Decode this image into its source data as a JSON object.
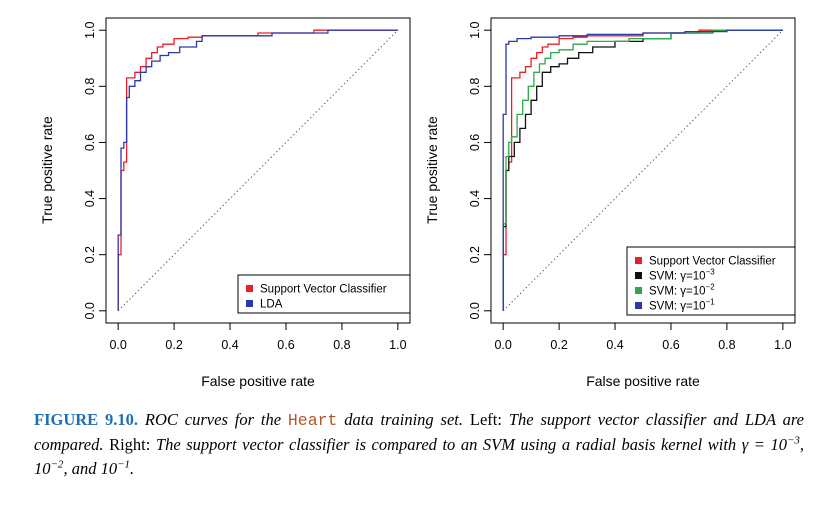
{
  "caption": {
    "label": "FIGURE 9.10.",
    "part1": "ROC curves for the",
    "code": "Heart",
    "part2": "data training set.",
    "left_word": "Left:",
    "part3": "The support vector classifier and LDA are compared.",
    "right_word": "Right:",
    "part4": "The support vector classifier is compared to an SVM using a radial basis kernel with γ = 10",
    "exp1": "−3",
    "sep1": ", 10",
    "exp2": "−2",
    "sep2": ", and 10",
    "exp3": "−1",
    "end": "."
  },
  "chart_data": [
    {
      "type": "line",
      "title": "",
      "xlabel": "False positive rate",
      "ylabel": "True positive rate",
      "xlim": [
        0,
        1
      ],
      "ylim": [
        0,
        1
      ],
      "xticks": [
        "0.0",
        "0.2",
        "0.4",
        "0.6",
        "0.8",
        "1.0"
      ],
      "yticks": [
        "0.0",
        "0.2",
        "0.4",
        "0.6",
        "0.8",
        "1.0"
      ],
      "grid": false,
      "diagonal": true,
      "legend_position": "bottom-right",
      "series": [
        {
          "name": "Support Vector Classifier",
          "color": "#e8202a",
          "x": [
            0,
            0,
            0.01,
            0.01,
            0.02,
            0.02,
            0.03,
            0.03,
            0.04,
            0.06,
            0.06,
            0.08,
            0.08,
            0.1,
            0.1,
            0.12,
            0.12,
            0.14,
            0.14,
            0.16,
            0.16,
            0.2,
            0.2,
            0.25,
            0.25,
            0.3,
            0.3,
            0.5,
            0.5,
            0.7,
            0.7,
            1
          ],
          "y": [
            0,
            0.2,
            0.2,
            0.5,
            0.5,
            0.53,
            0.53,
            0.83,
            0.83,
            0.83,
            0.85,
            0.85,
            0.87,
            0.87,
            0.9,
            0.9,
            0.92,
            0.92,
            0.94,
            0.94,
            0.95,
            0.95,
            0.97,
            0.97,
            0.975,
            0.975,
            0.98,
            0.98,
            0.99,
            0.99,
            1,
            1
          ]
        },
        {
          "name": "LDA",
          "color": "#2b3aa8",
          "x": [
            0,
            0,
            0.01,
            0.01,
            0.02,
            0.02,
            0.03,
            0.03,
            0.04,
            0.04,
            0.06,
            0.06,
            0.08,
            0.08,
            0.1,
            0.1,
            0.12,
            0.12,
            0.15,
            0.15,
            0.18,
            0.18,
            0.22,
            0.22,
            0.28,
            0.28,
            0.3,
            0.3,
            0.55,
            0.55,
            0.75,
            0.75,
            1
          ],
          "y": [
            0,
            0.27,
            0.27,
            0.58,
            0.58,
            0.6,
            0.6,
            0.76,
            0.76,
            0.8,
            0.8,
            0.82,
            0.82,
            0.85,
            0.85,
            0.87,
            0.87,
            0.89,
            0.89,
            0.91,
            0.91,
            0.92,
            0.92,
            0.94,
            0.94,
            0.96,
            0.96,
            0.98,
            0.98,
            0.99,
            0.99,
            1,
            1
          ]
        }
      ]
    },
    {
      "type": "line",
      "title": "",
      "xlabel": "False positive rate",
      "ylabel": "True positive rate",
      "xlim": [
        0,
        1
      ],
      "ylim": [
        0,
        1
      ],
      "xticks": [
        "0.0",
        "0.2",
        "0.4",
        "0.6",
        "0.8",
        "1.0"
      ],
      "yticks": [
        "0.0",
        "0.2",
        "0.4",
        "0.6",
        "0.8",
        "1.0"
      ],
      "grid": false,
      "diagonal": true,
      "legend_position": "bottom-right",
      "series": [
        {
          "name": "Support Vector Classifier",
          "color": "#e8202a",
          "x": [
            0,
            0,
            0.01,
            0.01,
            0.02,
            0.02,
            0.03,
            0.03,
            0.04,
            0.06,
            0.06,
            0.08,
            0.08,
            0.1,
            0.1,
            0.12,
            0.12,
            0.14,
            0.14,
            0.16,
            0.16,
            0.2,
            0.2,
            0.25,
            0.25,
            0.3,
            0.3,
            0.5,
            0.5,
            0.7,
            0.7,
            1
          ],
          "y": [
            0,
            0.2,
            0.2,
            0.5,
            0.5,
            0.53,
            0.53,
            0.83,
            0.83,
            0.83,
            0.85,
            0.85,
            0.87,
            0.87,
            0.9,
            0.9,
            0.92,
            0.92,
            0.94,
            0.94,
            0.95,
            0.95,
            0.97,
            0.97,
            0.975,
            0.975,
            0.98,
            0.98,
            0.99,
            0.99,
            1,
            1
          ]
        },
        {
          "name": "SVM: γ=10",
          "name_exp": "−3",
          "color": "#111111",
          "x": [
            0,
            0,
            0.01,
            0.01,
            0.02,
            0.02,
            0.04,
            0.04,
            0.06,
            0.06,
            0.08,
            0.08,
            0.1,
            0.1,
            0.12,
            0.12,
            0.14,
            0.14,
            0.17,
            0.17,
            0.2,
            0.2,
            0.23,
            0.23,
            0.27,
            0.27,
            0.32,
            0.32,
            0.4,
            0.4,
            0.5,
            0.5,
            0.6,
            0.6,
            0.75,
            0.75,
            1
          ],
          "y": [
            0,
            0.3,
            0.3,
            0.5,
            0.5,
            0.55,
            0.55,
            0.6,
            0.6,
            0.65,
            0.65,
            0.7,
            0.7,
            0.75,
            0.75,
            0.8,
            0.8,
            0.85,
            0.85,
            0.87,
            0.87,
            0.88,
            0.88,
            0.9,
            0.9,
            0.92,
            0.92,
            0.94,
            0.94,
            0.96,
            0.96,
            0.97,
            0.97,
            0.99,
            0.99,
            1,
            1
          ]
        },
        {
          "name": "SVM: γ=10",
          "name_exp": "−2",
          "color": "#2ea84a",
          "x": [
            0,
            0,
            0.01,
            0.01,
            0.02,
            0.02,
            0.03,
            0.03,
            0.05,
            0.05,
            0.07,
            0.07,
            0.09,
            0.09,
            0.11,
            0.11,
            0.13,
            0.13,
            0.15,
            0.15,
            0.17,
            0.17,
            0.2,
            0.2,
            0.25,
            0.25,
            0.3,
            0.3,
            0.45,
            0.45,
            0.6,
            0.6,
            0.75,
            0.75,
            1
          ],
          "y": [
            0,
            0.31,
            0.31,
            0.55,
            0.55,
            0.6,
            0.6,
            0.62,
            0.62,
            0.7,
            0.7,
            0.75,
            0.75,
            0.8,
            0.8,
            0.85,
            0.85,
            0.88,
            0.88,
            0.9,
            0.9,
            0.92,
            0.92,
            0.93,
            0.93,
            0.95,
            0.95,
            0.96,
            0.96,
            0.97,
            0.97,
            0.99,
            0.99,
            1,
            1
          ]
        },
        {
          "name": "SVM: γ=10",
          "name_exp": "−1",
          "color": "#2b3aa8",
          "x": [
            0,
            0,
            0.01,
            0.01,
            0.02,
            0.02,
            0.05,
            0.05,
            0.1,
            0.1,
            0.2,
            0.2,
            0.3,
            0.3,
            0.5,
            0.5,
            0.65,
            0.65,
            0.8,
            0.8,
            1
          ],
          "y": [
            0,
            0.7,
            0.7,
            0.95,
            0.95,
            0.96,
            0.96,
            0.97,
            0.97,
            0.975,
            0.975,
            0.98,
            0.98,
            0.985,
            0.985,
            0.99,
            0.99,
            0.995,
            0.995,
            1,
            1
          ]
        }
      ]
    }
  ]
}
